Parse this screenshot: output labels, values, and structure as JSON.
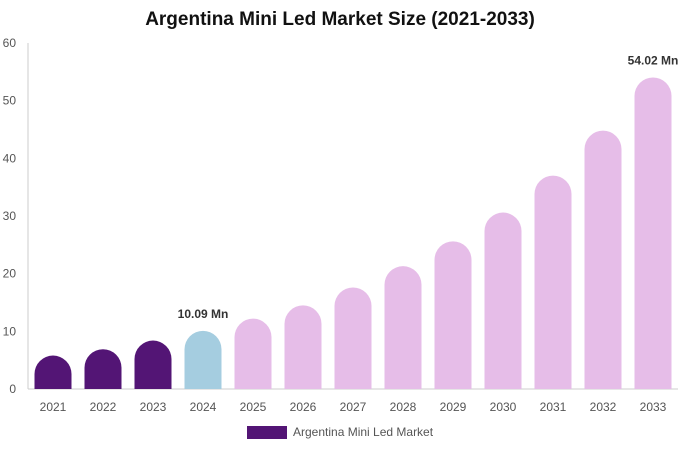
{
  "chart_data": {
    "type": "bar",
    "title": "Argentina Mini Led Market Size (2021-2033)",
    "xlabel": "",
    "ylabel": "",
    "categories": [
      "2021",
      "2022",
      "2023",
      "2024",
      "2025",
      "2026",
      "2027",
      "2028",
      "2029",
      "2030",
      "2031",
      "2032",
      "2033"
    ],
    "series": [
      {
        "name": "Argentina Mini Led Market",
        "values": [
          5.8,
          6.9,
          8.4,
          10.09,
          12.2,
          14.5,
          17.6,
          21.3,
          25.6,
          30.6,
          37.0,
          44.8,
          54.02
        ]
      }
    ],
    "ylim": [
      0,
      60
    ],
    "yticks": [
      0,
      10,
      20,
      30,
      40,
      50,
      60
    ],
    "grid": false,
    "legend": "bottom-center",
    "data_labels": [
      {
        "category": "2024",
        "text": "10.09 Mn"
      },
      {
        "category": "2033",
        "text": "54.02 Mn"
      }
    ],
    "colors": {
      "historical": "#531575",
      "current": "#a5cde0",
      "forecast": "#e6bde8",
      "legend_swatch": "#531575",
      "axis": "#cccccc"
    },
    "bar_color_by_category": {
      "2021": "historical",
      "2022": "historical",
      "2023": "historical",
      "2024": "current",
      "2025": "forecast",
      "2026": "forecast",
      "2027": "forecast",
      "2028": "forecast",
      "2029": "forecast",
      "2030": "forecast",
      "2031": "forecast",
      "2032": "forecast",
      "2033": "forecast"
    }
  }
}
